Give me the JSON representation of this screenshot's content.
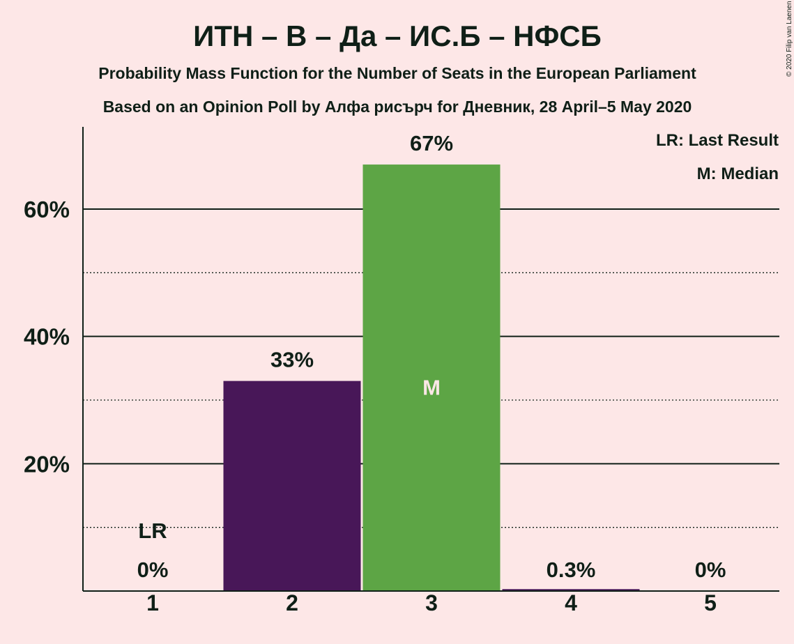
{
  "title": "ИТН – В – Да – ИС.Б – НФСБ",
  "subtitle": "Probability Mass Function for the Number of Seats in the European Parliament",
  "subtitle2": "Based on an Opinion Poll by Алфа рисърч for Дневник, 28 April–5 May 2020",
  "copyright": "© 2020 Filip van Laenen",
  "legend": {
    "last_result": "LR: Last Result",
    "median": "M: Median"
  },
  "colors": {
    "background": "#fde7e7",
    "bar_low": "#481758",
    "bar_median": "#5da545",
    "text": "#0f1f17"
  },
  "chart_data": {
    "type": "bar",
    "categories": [
      "1",
      "2",
      "3",
      "4",
      "5"
    ],
    "values": [
      0,
      33,
      67,
      0.3,
      0
    ],
    "labels": [
      "0%",
      "33%",
      "67%",
      "0.3%",
      "0%"
    ],
    "bar_colors": [
      "#481758",
      "#481758",
      "#5da545",
      "#481758",
      "#481758"
    ],
    "last_result_category": "1",
    "last_result_marker": "LR",
    "median_category": "3",
    "median_marker": "M",
    "ylim": [
      0,
      72
    ],
    "y_ticks": [
      20,
      40,
      60
    ],
    "y_tick_labels": [
      "20%",
      "40%",
      "60%"
    ],
    "minor_gridlines": [
      10,
      30,
      50
    ],
    "grid": true,
    "legend_position": "top-right",
    "xlabel": "",
    "ylabel": ""
  }
}
